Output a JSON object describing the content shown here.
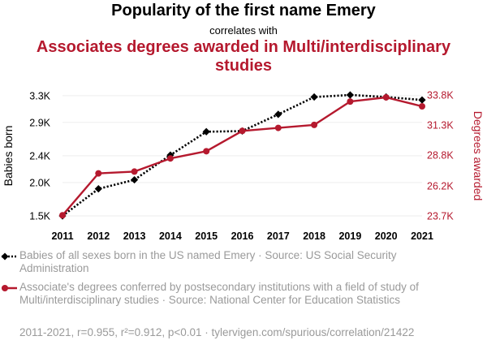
{
  "header": {
    "title": "Popularity of the first name Emery",
    "subtitle": "correlates with",
    "title2_line1": "Associates degrees awarded in Multi/interdisciplinary",
    "title2_line2": "studies"
  },
  "chart_data": {
    "type": "line",
    "x": [
      2011,
      2012,
      2013,
      2014,
      2015,
      2016,
      2017,
      2018,
      2019,
      2020,
      2021
    ],
    "series": [
      {
        "name": "Babies of all sexes born in the US named Emery · Source: US Social Security Administration",
        "values": [
          1500,
          1905,
          2040,
          2410,
          2760,
          2770,
          3020,
          3280,
          3310,
          3280,
          3235
        ],
        "color": "#000000",
        "axis": "left",
        "marker": "diamond",
        "line_style": "dotted"
      },
      {
        "name": "Associate's degrees conferred by postsecondary institutions with a field of study of Multi/interdisciplinary studies · Source: National Center for Education Statistics",
        "values": [
          23750,
          27250,
          27400,
          28500,
          29100,
          30800,
          31050,
          31300,
          33250,
          33600,
          32850
        ],
        "color": "#b5192e",
        "axis": "right",
        "marker": "circle",
        "line_style": "solid"
      }
    ],
    "y_left": {
      "label": "Babies born",
      "ticks": [
        1500,
        2000,
        2400,
        2900,
        3300
      ],
      "tick_labels": [
        "1.5K",
        "2.0K",
        "2.4K",
        "2.9K",
        "3.3K"
      ],
      "range": [
        1500,
        3310
      ]
    },
    "y_right": {
      "label": "Degrees awarded",
      "ticks": [
        23700,
        26200,
        28800,
        31300,
        33800
      ],
      "tick_labels": [
        "23.7K",
        "26.2K",
        "28.8K",
        "31.3K",
        "33.8K"
      ],
      "range": [
        23700,
        33800
      ]
    },
    "x_tick_labels": [
      "2011",
      "2012",
      "2013",
      "2014",
      "2015",
      "2016",
      "2017",
      "2018",
      "2019",
      "2020",
      "2021"
    ],
    "grid": "horizontal",
    "footer": "2011-2021, r=0.955, r²=0.912, p<0.01 · tylervigen.com/spurious/correlation/21422"
  }
}
